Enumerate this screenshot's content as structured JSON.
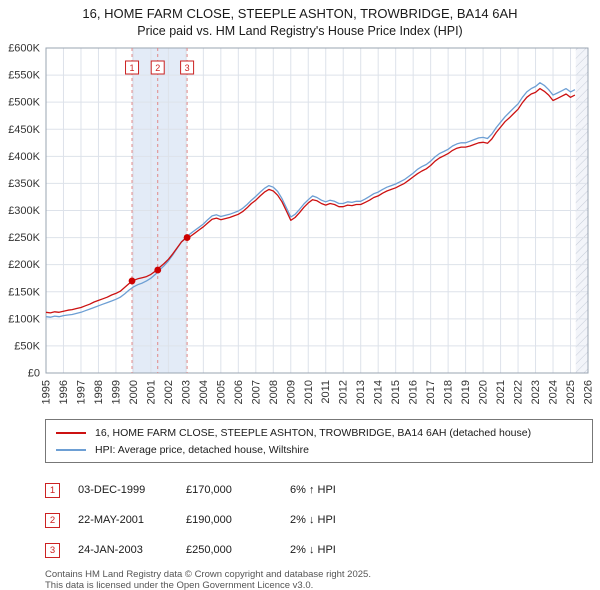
{
  "title": "16, HOME FARM CLOSE, STEEPLE ASHTON, TROWBRIDGE, BA14 6AH",
  "subtitle": "Price paid vs. HM Land Registry's House Price Index (HPI)",
  "chart_data": {
    "type": "line",
    "x_range": [
      1995,
      2026
    ],
    "y_range": [
      0,
      600
    ],
    "y_unit": "GBP thousands",
    "x_start": 1995.0,
    "x_step": 0.25,
    "x_ticks": [
      1995,
      1996,
      1997,
      1998,
      1999,
      2000,
      2001,
      2002,
      2003,
      2004,
      2005,
      2006,
      2007,
      2008,
      2009,
      2010,
      2011,
      2012,
      2013,
      2014,
      2015,
      2016,
      2017,
      2018,
      2019,
      2020,
      2021,
      2022,
      2023,
      2024,
      2025,
      2026
    ],
    "y_tick_values": [
      0,
      50,
      100,
      150,
      200,
      250,
      300,
      350,
      400,
      450,
      500,
      550,
      600
    ],
    "y_tick_labels": [
      "£0",
      "£50K",
      "£100K",
      "£150K",
      "£200K",
      "£250K",
      "£300K",
      "£350K",
      "£400K",
      "£450K",
      "£500K",
      "£550K",
      "£600K"
    ],
    "series": [
      {
        "name": "16, HOME FARM CLOSE, STEEPLE ASHTON, TROWBRIDGE, BA14 6AH (detached house)",
        "color": "#cc1111",
        "values": [
          112,
          111,
          113,
          112,
          114,
          116,
          117,
          119,
          121,
          124,
          127,
          131,
          134,
          137,
          140,
          144,
          147,
          151,
          158,
          165,
          171,
          174,
          176,
          178,
          182,
          188,
          195,
          202,
          210,
          220,
          231,
          242,
          249,
          252,
          258,
          264,
          270,
          277,
          284,
          286,
          283,
          285,
          287,
          290,
          293,
          298,
          305,
          313,
          319,
          327,
          334,
          339,
          336,
          328,
          316,
          299,
          282,
          287,
          296,
          306,
          314,
          320,
          318,
          313,
          310,
          313,
          311,
          307,
          307,
          310,
          309,
          311,
          311,
          315,
          319,
          324,
          327,
          332,
          336,
          339,
          342,
          346,
          350,
          356,
          362,
          368,
          373,
          377,
          383,
          391,
          397,
          401,
          405,
          411,
          415,
          417,
          417,
          419,
          422,
          425,
          426,
          424,
          432,
          444,
          454,
          464,
          471,
          479,
          487,
          499,
          509,
          515,
          518,
          525,
          520,
          513,
          503,
          507,
          511,
          515,
          509,
          513
        ]
      },
      {
        "name": "HPI: Average price, detached house, Wiltshire",
        "color": "#6d9fd4",
        "values": [
          104,
          103,
          105,
          104,
          106,
          107,
          108,
          110,
          112,
          115,
          118,
          121,
          124,
          127,
          130,
          133,
          136,
          140,
          146,
          153,
          159,
          163,
          166,
          170,
          175,
          182,
          190,
          198,
          207,
          218,
          230,
          242,
          250,
          257,
          263,
          269,
          275,
          283,
          290,
          292,
          289,
          291,
          293,
          296,
          299,
          304,
          311,
          319,
          326,
          334,
          341,
          346,
          343,
          335,
          322,
          305,
          288,
          293,
          302,
          312,
          320,
          327,
          324,
          319,
          316,
          319,
          317,
          313,
          313,
          316,
          315,
          317,
          317,
          321,
          326,
          331,
          334,
          339,
          343,
          346,
          349,
          353,
          357,
          363,
          369,
          376,
          381,
          385,
          391,
          399,
          405,
          409,
          413,
          419,
          423,
          425,
          425,
          428,
          431,
          434,
          435,
          433,
          441,
          453,
          463,
          473,
          481,
          489,
          497,
          509,
          519,
          525,
          529,
          536,
          531,
          523,
          513,
          517,
          521,
          525,
          519,
          523
        ]
      }
    ],
    "sales_markers": [
      {
        "label": "1",
        "x": 1999.92,
        "y": 170
      },
      {
        "label": "2",
        "x": 2001.39,
        "y": 190
      },
      {
        "label": "3",
        "x": 2003.07,
        "y": 250
      }
    ],
    "shaded_band": [
      1999.92,
      2003.07
    ],
    "hatched_region": [
      2025.3,
      2026
    ],
    "colors": {
      "band": "#e3ebf7",
      "grid": "#dde2ea",
      "frame": "#9aa4b2",
      "sale_line": "#e08888",
      "marker": "#cc0000",
      "marker_box": "#cc2222",
      "hatch_line": "#c6ccd8",
      "hatch_bg": "#f2f4f9",
      "tick_text": "#333333"
    },
    "legend_position": "bottom"
  },
  "legend": {
    "property": "16, HOME FARM CLOSE, STEEPLE ASHTON, TROWBRIDGE, BA14 6AH (detached house)",
    "hpi": "HPI: Average price, detached house, Wiltshire"
  },
  "sales": [
    {
      "num": "1",
      "date": "03-DEC-1999",
      "price": "£170,000",
      "hpi": "6% ↑ HPI"
    },
    {
      "num": "2",
      "date": "22-MAY-2001",
      "price": "£190,000",
      "hpi": "2% ↓ HPI"
    },
    {
      "num": "3",
      "date": "24-JAN-2003",
      "price": "£250,000",
      "hpi": "2% ↓ HPI"
    }
  ],
  "footer": {
    "line1": "Contains HM Land Registry data © Crown copyright and database right 2025.",
    "line2": "This data is licensed under the Open Government Licence v3.0."
  }
}
